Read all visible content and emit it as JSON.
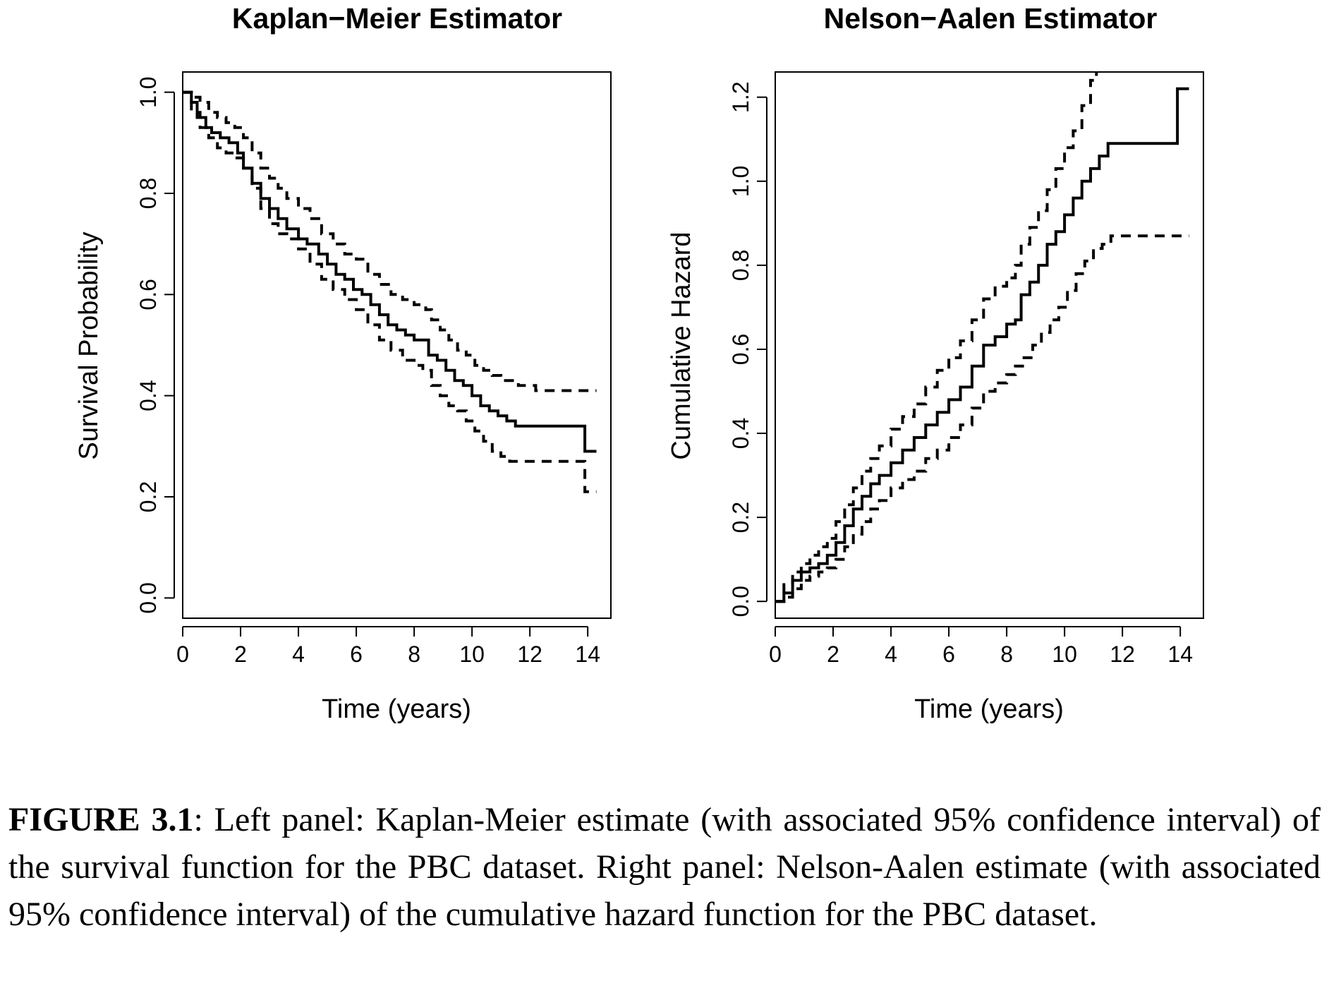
{
  "chart_data": [
    {
      "type": "line",
      "title": "Kaplan−Meier Estimator",
      "xlabel": "Time (years)",
      "ylabel": "Survival Probability",
      "xlim": [
        0,
        14.8
      ],
      "ylim": [
        -0.04,
        1.04
      ],
      "xticks": [
        "0",
        "2",
        "4",
        "6",
        "8",
        "10",
        "12",
        "14"
      ],
      "yticks": [
        "0.0",
        "0.2",
        "0.4",
        "0.6",
        "0.8",
        "1.0"
      ],
      "series": [
        {
          "style": "solid",
          "x": [
            0,
            0.3,
            0.5,
            0.8,
            1.0,
            1.3,
            1.6,
            1.9,
            2.1,
            2.4,
            2.7,
            3.0,
            3.3,
            3.6,
            4.0,
            4.3,
            4.7,
            5.0,
            5.3,
            5.6,
            5.9,
            6.2,
            6.5,
            6.8,
            7.1,
            7.4,
            7.7,
            8.0,
            8.3,
            8.5,
            8.8,
            9.1,
            9.4,
            9.7,
            10.0,
            10.3,
            10.6,
            10.9,
            11.2,
            11.5,
            13.9,
            13.9,
            14.3
          ],
          "y": [
            1.0,
            0.98,
            0.95,
            0.93,
            0.92,
            0.91,
            0.9,
            0.88,
            0.85,
            0.82,
            0.79,
            0.77,
            0.75,
            0.73,
            0.71,
            0.7,
            0.68,
            0.66,
            0.64,
            0.63,
            0.61,
            0.6,
            0.58,
            0.56,
            0.54,
            0.53,
            0.52,
            0.51,
            0.51,
            0.48,
            0.47,
            0.45,
            0.43,
            0.42,
            0.4,
            0.38,
            0.37,
            0.36,
            0.35,
            0.34,
            0.34,
            0.29,
            0.29
          ]
        },
        {
          "style": "dashed",
          "x": [
            0,
            0.3,
            0.6,
            0.9,
            1.2,
            1.5,
            1.8,
            2.1,
            2.4,
            2.7,
            3.0,
            3.3,
            3.6,
            4.0,
            4.4,
            4.8,
            5.2,
            5.6,
            6.0,
            6.4,
            6.8,
            7.2,
            7.6,
            8.0,
            8.4,
            8.6,
            8.9,
            9.2,
            9.5,
            9.8,
            10.1,
            10.4,
            10.7,
            11.0,
            11.3,
            11.6,
            12.2,
            14.3
          ],
          "y": [
            1.0,
            0.99,
            0.98,
            0.96,
            0.95,
            0.94,
            0.93,
            0.91,
            0.88,
            0.85,
            0.83,
            0.81,
            0.79,
            0.77,
            0.75,
            0.72,
            0.7,
            0.68,
            0.67,
            0.64,
            0.62,
            0.6,
            0.59,
            0.58,
            0.57,
            0.55,
            0.53,
            0.51,
            0.49,
            0.48,
            0.46,
            0.45,
            0.44,
            0.43,
            0.43,
            0.42,
            0.41,
            0.41
          ]
        },
        {
          "style": "dashed",
          "x": [
            0,
            0.3,
            0.6,
            0.9,
            1.2,
            1.5,
            1.8,
            2.1,
            2.4,
            2.7,
            3.0,
            3.3,
            3.6,
            4.0,
            4.4,
            4.8,
            5.2,
            5.6,
            6.0,
            6.4,
            6.8,
            7.2,
            7.6,
            8.0,
            8.3,
            8.6,
            8.9,
            9.2,
            9.5,
            9.8,
            10.1,
            10.4,
            10.7,
            11.0,
            11.3,
            13.9,
            13.9,
            14.3
          ],
          "y": [
            1.0,
            0.96,
            0.93,
            0.91,
            0.89,
            0.88,
            0.87,
            0.85,
            0.81,
            0.77,
            0.74,
            0.72,
            0.71,
            0.69,
            0.66,
            0.63,
            0.61,
            0.59,
            0.57,
            0.54,
            0.51,
            0.49,
            0.47,
            0.46,
            0.45,
            0.42,
            0.4,
            0.38,
            0.37,
            0.35,
            0.33,
            0.31,
            0.29,
            0.28,
            0.27,
            0.27,
            0.21,
            0.21
          ]
        }
      ]
    },
    {
      "type": "line",
      "title": "Nelson−Aalen Estimator",
      "xlabel": "Time (years)",
      "ylabel": "Cumulative Hazard",
      "xlim": [
        0,
        14.8
      ],
      "ylim": [
        -0.04,
        1.26
      ],
      "xticks": [
        "0",
        "2",
        "4",
        "6",
        "8",
        "10",
        "12",
        "14"
      ],
      "yticks": [
        "0.0",
        "0.2",
        "0.4",
        "0.6",
        "0.8",
        "1.0",
        "1.2"
      ],
      "series": [
        {
          "style": "solid",
          "x": [
            0,
            0.3,
            0.6,
            0.9,
            1.2,
            1.5,
            1.8,
            2.1,
            2.4,
            2.7,
            3.0,
            3.3,
            3.6,
            4.0,
            4.4,
            4.8,
            5.2,
            5.6,
            6.0,
            6.4,
            6.8,
            7.2,
            7.6,
            8.0,
            8.3,
            8.5,
            8.8,
            9.1,
            9.4,
            9.7,
            10.0,
            10.3,
            10.6,
            10.9,
            11.2,
            11.5,
            13.9,
            13.9,
            14.3
          ],
          "y": [
            0,
            0.02,
            0.05,
            0.07,
            0.08,
            0.09,
            0.11,
            0.14,
            0.18,
            0.22,
            0.25,
            0.28,
            0.3,
            0.33,
            0.36,
            0.39,
            0.42,
            0.45,
            0.48,
            0.51,
            0.56,
            0.61,
            0.63,
            0.66,
            0.67,
            0.73,
            0.76,
            0.8,
            0.85,
            0.88,
            0.92,
            0.96,
            1.0,
            1.03,
            1.06,
            1.09,
            1.09,
            1.22,
            1.22
          ]
        },
        {
          "style": "dashed",
          "x": [
            0,
            0.3,
            0.6,
            0.9,
            1.2,
            1.5,
            1.8,
            2.1,
            2.4,
            2.7,
            3.0,
            3.3,
            3.6,
            4.0,
            4.4,
            4.8,
            5.2,
            5.6,
            6.0,
            6.4,
            6.8,
            7.2,
            7.6,
            8.0,
            8.3,
            8.5,
            8.8,
            9.1,
            9.4,
            9.7,
            10.0,
            10.3,
            10.6,
            10.9,
            11.1
          ],
          "y": [
            0,
            0.04,
            0.07,
            0.09,
            0.11,
            0.13,
            0.15,
            0.19,
            0.23,
            0.27,
            0.31,
            0.34,
            0.37,
            0.41,
            0.44,
            0.47,
            0.51,
            0.55,
            0.58,
            0.62,
            0.67,
            0.72,
            0.75,
            0.77,
            0.8,
            0.85,
            0.89,
            0.93,
            0.98,
            1.03,
            1.08,
            1.12,
            1.18,
            1.24,
            1.28
          ]
        },
        {
          "style": "dashed",
          "x": [
            0,
            0.3,
            0.6,
            0.9,
            1.2,
            1.5,
            1.8,
            2.1,
            2.4,
            2.7,
            3.0,
            3.3,
            3.6,
            4.0,
            4.4,
            4.8,
            5.2,
            5.6,
            6.0,
            6.4,
            6.8,
            7.2,
            7.6,
            8.0,
            8.3,
            8.6,
            8.9,
            9.2,
            9.5,
            9.8,
            10.1,
            10.4,
            10.7,
            11.0,
            11.3,
            11.6,
            14.3
          ],
          "y": [
            0,
            0.01,
            0.03,
            0.05,
            0.06,
            0.07,
            0.08,
            0.1,
            0.13,
            0.16,
            0.19,
            0.22,
            0.24,
            0.27,
            0.29,
            0.31,
            0.34,
            0.36,
            0.39,
            0.42,
            0.46,
            0.5,
            0.52,
            0.54,
            0.56,
            0.58,
            0.61,
            0.64,
            0.67,
            0.7,
            0.74,
            0.78,
            0.81,
            0.84,
            0.85,
            0.87,
            0.87
          ]
        }
      ]
    }
  ],
  "caption": {
    "label": "FIGURE 3.1",
    "text": ": Left panel: Kaplan-Meier estimate (with associated 95% confidence interval) of the survival function for the PBC dataset. Right panel: Nelson-Aalen estimate (with associated 95% confidence interval) of the cumulative hazard function for the PBC dataset."
  }
}
